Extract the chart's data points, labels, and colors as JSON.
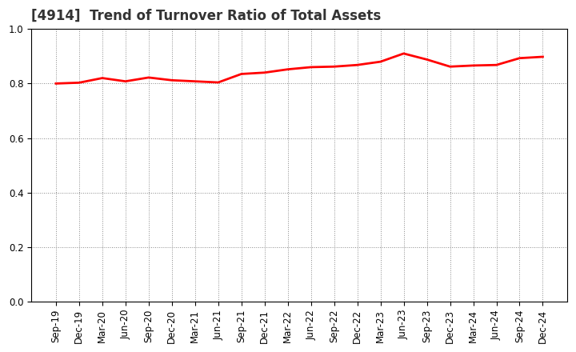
{
  "title": "[4914]  Trend of Turnover Ratio of Total Assets",
  "labels": [
    "Sep-19",
    "Dec-19",
    "Mar-20",
    "Jun-20",
    "Sep-20",
    "Dec-20",
    "Mar-21",
    "Jun-21",
    "Sep-21",
    "Dec-21",
    "Mar-22",
    "Jun-22",
    "Sep-22",
    "Dec-22",
    "Mar-23",
    "Jun-23",
    "Sep-23",
    "Dec-23",
    "Mar-24",
    "Jun-24",
    "Sep-24",
    "Dec-24"
  ],
  "values": [
    0.8,
    0.803,
    0.82,
    0.808,
    0.822,
    0.812,
    0.808,
    0.804,
    0.835,
    0.84,
    0.852,
    0.86,
    0.862,
    0.868,
    0.88,
    0.91,
    0.888,
    0.862,
    0.866,
    0.868,
    0.893,
    0.898
  ],
  "ylim": [
    0.0,
    1.0
  ],
  "yticks": [
    0.0,
    0.2,
    0.4,
    0.6,
    0.8,
    1.0
  ],
  "line_color": "#ff0000",
  "line_width": 2.0,
  "background_color": "#ffffff",
  "grid_color": "#888888",
  "title_fontsize": 12,
  "tick_fontsize": 8.5
}
